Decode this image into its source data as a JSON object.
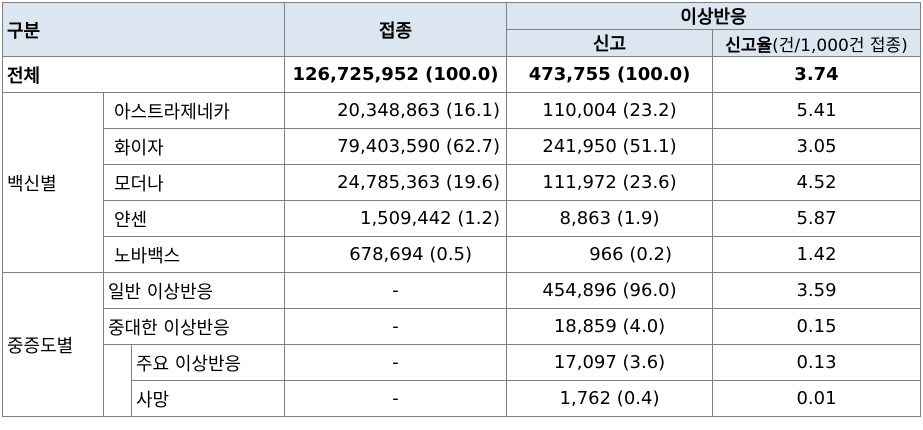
{
  "header": {
    "category": "구분",
    "vaccination": "접종",
    "adverse": "이상반응",
    "report": "신고",
    "rate_bold": "신고율",
    "rate_normal": "(건/1,000건 접종)"
  },
  "total": {
    "label": "전체",
    "vaccination": "126,725,952 (100.0)",
    "report": "473,755 (100.0)",
    "rate": "3.74"
  },
  "by_vaccine": {
    "group_label": "백신별",
    "rows": [
      {
        "name": "아스트라제네카",
        "vaccination": "20,348,863 (16.1)",
        "report": "110,004 (23.2)",
        "rate": "5.41"
      },
      {
        "name": "화이자",
        "vaccination": "79,403,590 (62.7)",
        "report": "241,950 (51.1)",
        "rate": "3.05"
      },
      {
        "name": "모더나",
        "vaccination": "24,785,363 (19.6)",
        "report": "111,972 (23.6)",
        "rate": "4.52"
      },
      {
        "name": "얀센",
        "vaccination": "1,509,442 (1.2)",
        "report": "8,863 (1.9)",
        "rate": "5.87"
      },
      {
        "name": "노바백스",
        "vaccination": "678,694 (0.5)",
        "report": "966 (0.2)",
        "rate": "1.42"
      }
    ]
  },
  "by_severity": {
    "group_label": "중증도별",
    "rows": [
      {
        "name": "일반 이상반응",
        "vaccination": "-",
        "report": "454,896 (96.0)",
        "rate": "3.59"
      },
      {
        "name": "중대한 이상반응",
        "vaccination": "-",
        "report": "18,859 (4.0)",
        "rate": "0.15"
      },
      {
        "name": "주요 이상반응",
        "vaccination": "-",
        "report": "17,097 (3.6)",
        "rate": "0.13"
      },
      {
        "name": "사망",
        "vaccination": "-",
        "report": "1,762 (0.4)",
        "rate": "0.01"
      }
    ]
  }
}
